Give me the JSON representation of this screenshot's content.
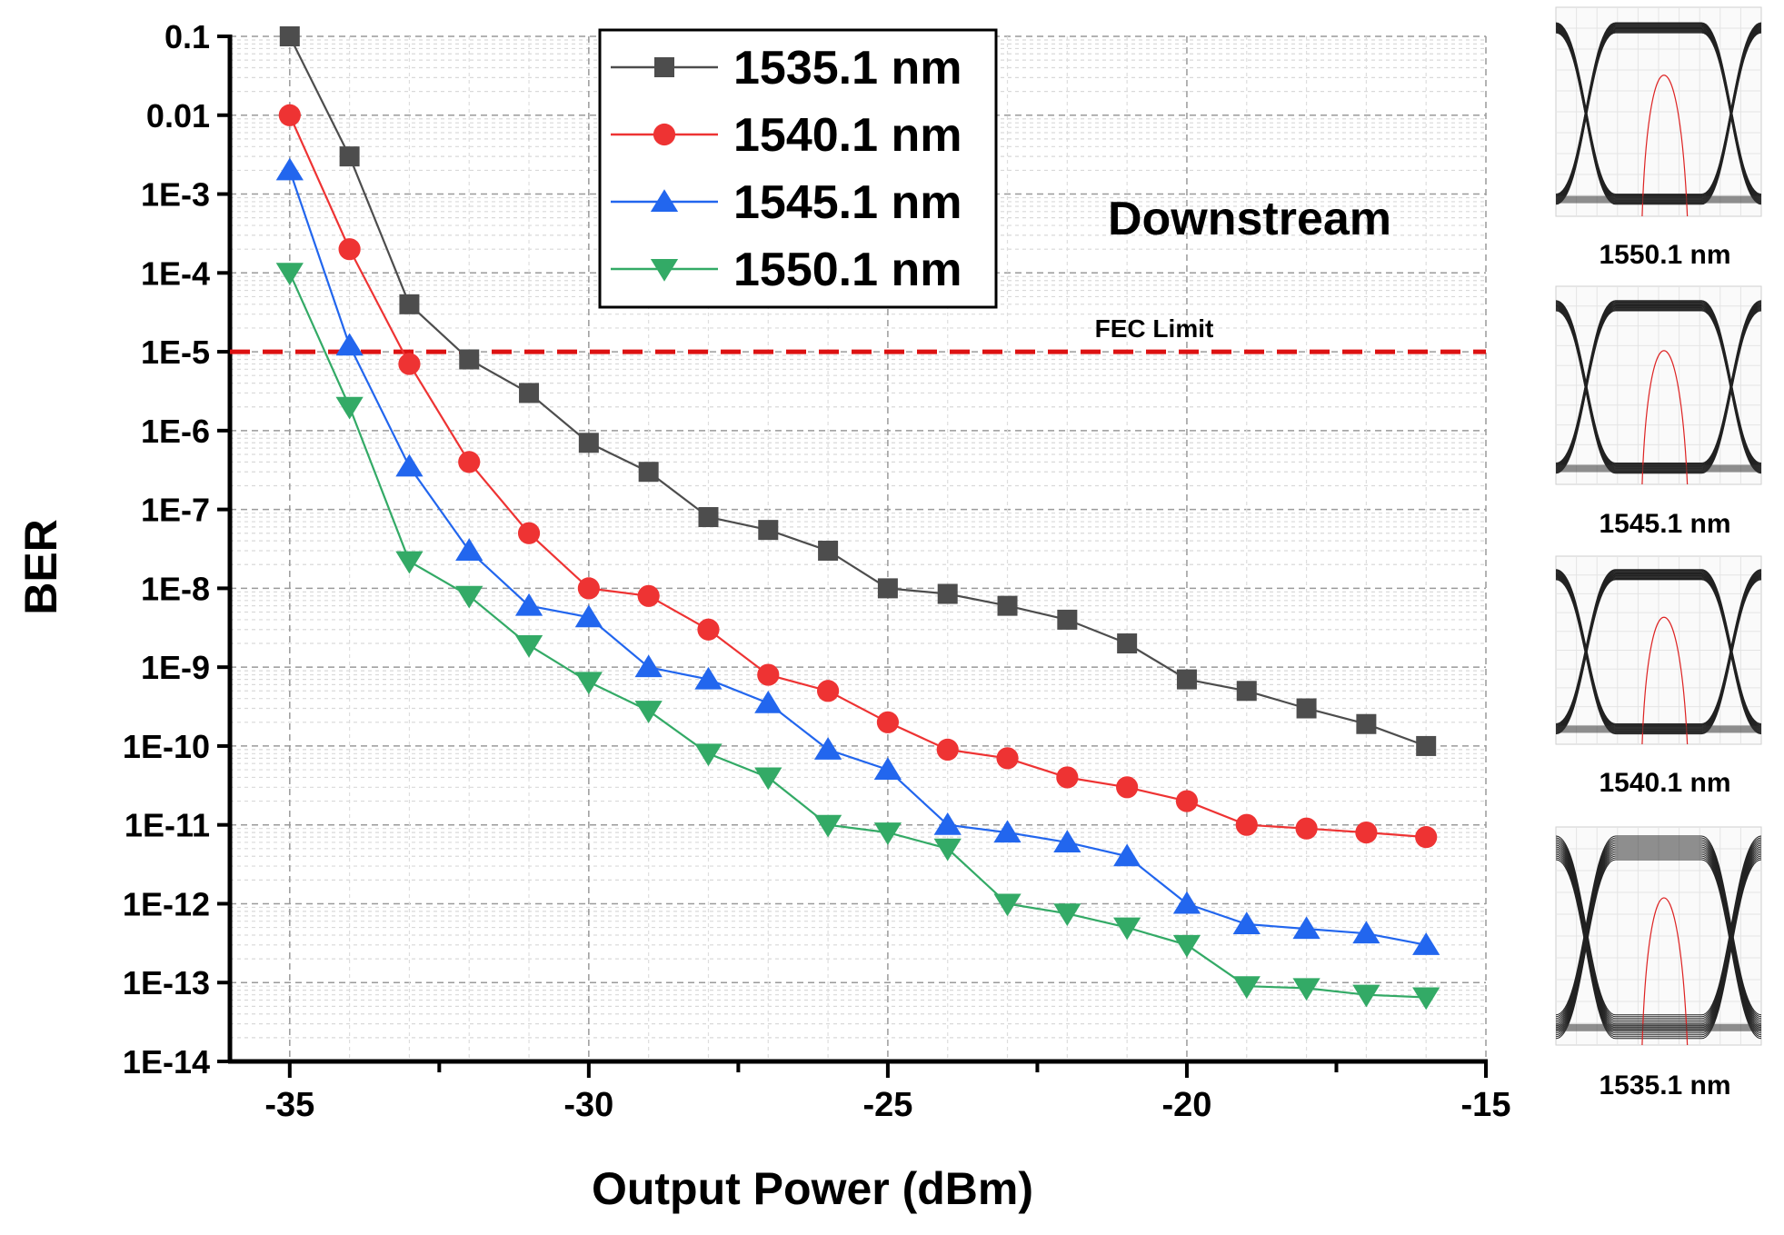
{
  "chart_data": {
    "type": "line",
    "yscale": "log",
    "xlabel": "Output Power (dBm)",
    "ylabel": "BER",
    "xlim": [
      -36,
      -15
    ],
    "ylim": [
      1e-14,
      0.1
    ],
    "x_ticks": [
      -35,
      -30,
      -25,
      -20,
      -15
    ],
    "x_tick_labels": [
      "-35",
      "-30",
      "-25",
      "-20",
      "-15"
    ],
    "y_tick_labels": [
      "0.1",
      "0.01",
      "1E-3",
      "1E-4",
      "1E-5",
      "1E-6",
      "1E-7",
      "1E-8",
      "1E-9",
      "1E-10",
      "1E-11",
      "1E-12",
      "1E-13",
      "1E-14"
    ],
    "x": [
      -35,
      -34,
      -33,
      -32,
      -31,
      -30,
      -29,
      -28,
      -27,
      -26,
      -25,
      -24,
      -23,
      -22,
      -21,
      -20,
      -19,
      -18,
      -17,
      -16
    ],
    "series": [
      {
        "name": "1535.1 nm",
        "color": "#4d4d4d",
        "marker": "square",
        "values": [
          0.1,
          0.003,
          4e-05,
          8e-06,
          3e-06,
          7e-07,
          3e-07,
          8e-08,
          5.5e-08,
          3e-08,
          1e-08,
          8.5e-09,
          6e-09,
          4e-09,
          2e-09,
          7e-10,
          5e-10,
          3e-10,
          1.9e-10,
          1e-10
        ]
      },
      {
        "name": "1540.1 nm",
        "color": "#ee3333",
        "marker": "circle",
        "values": [
          0.01,
          0.0002,
          7e-06,
          4e-07,
          5e-08,
          1e-08,
          8e-09,
          3e-09,
          8e-10,
          5e-10,
          2e-10,
          9e-11,
          7e-11,
          4e-11,
          3e-11,
          2e-11,
          1e-11,
          9e-12,
          8e-12,
          7e-12
        ]
      },
      {
        "name": "1545.1 nm",
        "color": "#2266ee",
        "marker": "triangle-up",
        "values": [
          0.002,
          1.2e-05,
          3.5e-07,
          3e-08,
          6e-09,
          4.3e-09,
          1e-09,
          7e-10,
          3.5e-10,
          9e-11,
          5e-11,
          1e-11,
          8e-12,
          6e-12,
          4e-12,
          1e-12,
          5.5e-13,
          4.8e-13,
          4.2e-13,
          3e-13
        ]
      },
      {
        "name": "1550.1 nm",
        "color": "#33aa66",
        "marker": "triangle-down",
        "values": [
          0.0001,
          2e-06,
          2.2e-08,
          8e-09,
          1.9e-09,
          6.5e-10,
          2.8e-10,
          8e-11,
          4e-11,
          1e-11,
          8e-12,
          5e-12,
          1e-12,
          7.5e-13,
          5e-13,
          3e-13,
          9e-14,
          8.5e-14,
          7e-14,
          6.5e-14
        ]
      }
    ],
    "reference_line": {
      "label": "FEC Limit",
      "value": 1e-05,
      "color": "#dd1111"
    },
    "annotation": "Downstream",
    "legend_position": "top-center"
  },
  "eye_diagrams": [
    {
      "label": "1550.1 nm"
    },
    {
      "label": "1545.1 nm"
    },
    {
      "label": "1540.1 nm"
    },
    {
      "label": "1535.1 nm"
    }
  ]
}
